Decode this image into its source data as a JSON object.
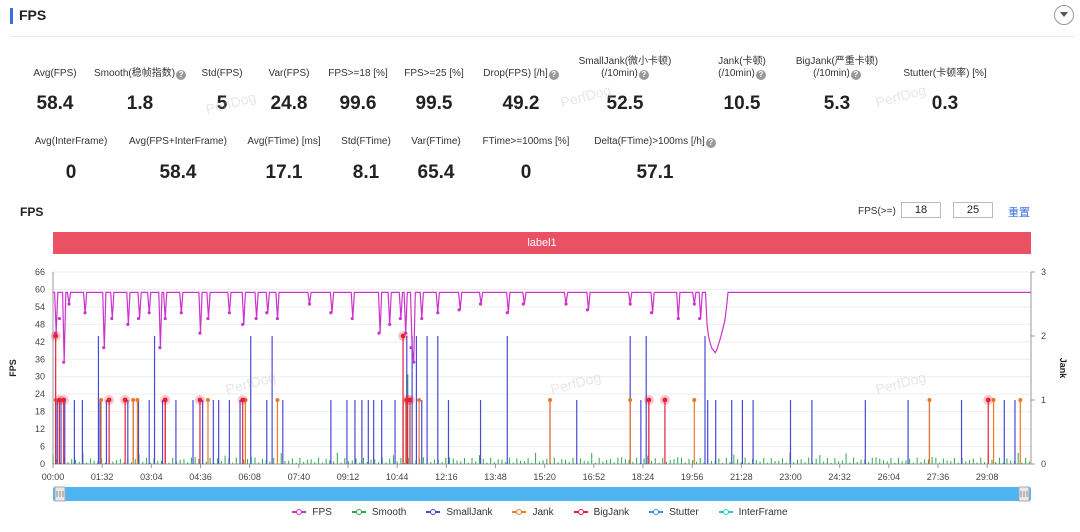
{
  "header": {
    "title": "FPS"
  },
  "metrics_row1": [
    {
      "label": "Avg(FPS)",
      "value": "58.4",
      "help": false
    },
    {
      "label": "Smooth(稳帧指数)",
      "value": "1.8",
      "help": true
    },
    {
      "label": "Std(FPS)",
      "value": "5",
      "help": false
    },
    {
      "label": "Var(FPS)",
      "value": "24.8",
      "help": false
    },
    {
      "label": "FPS>=18 [%]",
      "value": "99.6",
      "help": false
    },
    {
      "label": "FPS>=25 [%]",
      "value": "99.5",
      "help": false
    },
    {
      "label": "Drop(FPS) [/h]",
      "value": "49.2",
      "help": true
    },
    {
      "label": "SmallJank(微小卡顿)",
      "label2": "(/10min)",
      "value": "52.5",
      "help": true
    },
    {
      "label": "Jank(卡顿)",
      "label2": "(/10min)",
      "value": "10.5",
      "help": true
    },
    {
      "label": "BigJank(严重卡顿)",
      "label2": "(/10min)",
      "value": "5.3",
      "help": true
    },
    {
      "label": "Stutter(卡顿率) [%]",
      "value": "0.3",
      "help": false
    }
  ],
  "metrics_row2": [
    {
      "label": "Avg(InterFrame)",
      "value": "0",
      "help": false
    },
    {
      "label": "Avg(FPS+InterFrame)",
      "value": "58.4",
      "help": false
    },
    {
      "label": "Avg(FTime) [ms]",
      "value": "17.1",
      "help": false
    },
    {
      "label": "Std(FTime)",
      "value": "8.1",
      "help": false
    },
    {
      "label": "Var(FTime)",
      "value": "65.4",
      "help": false
    },
    {
      "label": "FTime>=100ms [%]",
      "value": "0",
      "help": false
    },
    {
      "label": "Delta(FTime)>100ms [/h]",
      "value": "57.1",
      "help": true
    }
  ],
  "watermark": "PerfDog",
  "chart_section": {
    "title": "FPS",
    "threshold_label": "FPS(>=)",
    "threshold1": "18",
    "threshold2": "25",
    "reset_label": "重置",
    "banner_label": "label1"
  },
  "chart_data": {
    "type": "line",
    "ylabel": "FPS",
    "y2label": "Jank",
    "ylim": [
      0,
      66
    ],
    "y2lim": [
      0,
      3
    ],
    "yticks": [
      "0",
      "6",
      "12",
      "18",
      "24",
      "30",
      "36",
      "42",
      "48",
      "54",
      "60",
      "66"
    ],
    "y2ticks": [
      "0",
      "1",
      "2",
      "3"
    ],
    "xticks": [
      "00:00",
      "01:32",
      "03:04",
      "04:36",
      "06:08",
      "07:40",
      "09:12",
      "10:44",
      "12:16",
      "13:48",
      "15:20",
      "16:52",
      "18:24",
      "19:56",
      "21:28",
      "23:00",
      "24:32",
      "26:04",
      "27:36",
      "29:08"
    ],
    "duration_s": 1830,
    "series": [
      {
        "name": "FPS",
        "color": "#cc33cc",
        "axis": "left",
        "baseline": 59,
        "segments": [
          [
            0,
            59
          ],
          [
            1220,
            59
          ],
          [
            1225,
            45
          ],
          [
            1232,
            40
          ],
          [
            1240,
            38
          ],
          [
            1250,
            44
          ],
          [
            1258,
            50
          ],
          [
            1263,
            59
          ],
          [
            1830,
            59
          ]
        ],
        "dips": [
          [
            5,
            45
          ],
          [
            12,
            50
          ],
          [
            20,
            35
          ],
          [
            30,
            55
          ],
          [
            60,
            52
          ],
          [
            95,
            40
          ],
          [
            110,
            50
          ],
          [
            140,
            48
          ],
          [
            160,
            50
          ],
          [
            180,
            52
          ],
          [
            200,
            40
          ],
          [
            210,
            50
          ],
          [
            240,
            52
          ],
          [
            275,
            45
          ],
          [
            290,
            50
          ],
          [
            330,
            52
          ],
          [
            355,
            48
          ],
          [
            380,
            50
          ],
          [
            400,
            52
          ],
          [
            420,
            50
          ],
          [
            480,
            55
          ],
          [
            520,
            52
          ],
          [
            560,
            50
          ],
          [
            610,
            45
          ],
          [
            630,
            48
          ],
          [
            650,
            50
          ],
          [
            660,
            45
          ],
          [
            670,
            40
          ],
          [
            675,
            35
          ],
          [
            690,
            50
          ],
          [
            720,
            52
          ],
          [
            760,
            53
          ],
          [
            800,
            55
          ],
          [
            850,
            52
          ],
          [
            880,
            55
          ],
          [
            960,
            55
          ],
          [
            1000,
            53
          ],
          [
            1080,
            55
          ],
          [
            1120,
            52
          ],
          [
            1170,
            50
          ],
          [
            1200,
            55
          ],
          [
            1210,
            50
          ]
        ]
      },
      {
        "name": "Smooth",
        "color": "#2ea84e",
        "axis": "right"
      },
      {
        "name": "SmallJank",
        "color": "#4a4ad6",
        "axis": "right",
        "events": [
          [
            8,
            1
          ],
          [
            15,
            1
          ],
          [
            22,
            1
          ],
          [
            40,
            1
          ],
          [
            55,
            1
          ],
          [
            85,
            2
          ],
          [
            88,
            1
          ],
          [
            100,
            1
          ],
          [
            140,
            1
          ],
          [
            150,
            1
          ],
          [
            160,
            1
          ],
          [
            180,
            1
          ],
          [
            190,
            2
          ],
          [
            205,
            1
          ],
          [
            230,
            1
          ],
          [
            262,
            1
          ],
          [
            280,
            1
          ],
          [
            300,
            1
          ],
          [
            310,
            1
          ],
          [
            330,
            1
          ],
          [
            350,
            1
          ],
          [
            370,
            2
          ],
          [
            400,
            1
          ],
          [
            410,
            2
          ],
          [
            430,
            1
          ],
          [
            520,
            1
          ],
          [
            550,
            1
          ],
          [
            565,
            1
          ],
          [
            578,
            1
          ],
          [
            590,
            1
          ],
          [
            600,
            1
          ],
          [
            615,
            1
          ],
          [
            640,
            1
          ],
          [
            655,
            1
          ],
          [
            662,
            2
          ],
          [
            672,
            2
          ],
          [
            680,
            2
          ],
          [
            690,
            1
          ],
          [
            700,
            2
          ],
          [
            720,
            2
          ],
          [
            740,
            1
          ],
          [
            800,
            1
          ],
          [
            850,
            2
          ],
          [
            930,
            1
          ],
          [
            980,
            1
          ],
          [
            1080,
            2
          ],
          [
            1100,
            1
          ],
          [
            1110,
            2
          ],
          [
            1220,
            2
          ],
          [
            1225,
            1
          ],
          [
            1240,
            1
          ],
          [
            1270,
            1
          ],
          [
            1290,
            1
          ],
          [
            1310,
            1
          ],
          [
            1380,
            1
          ],
          [
            1420,
            1
          ],
          [
            1520,
            1
          ],
          [
            1600,
            1
          ],
          [
            1640,
            1
          ],
          [
            1700,
            1
          ],
          [
            1780,
            1
          ],
          [
            1800,
            1
          ]
        ]
      },
      {
        "name": "Jank",
        "color": "#f07820",
        "axis": "right",
        "events": [
          [
            5,
            1
          ],
          [
            12,
            1
          ],
          [
            90,
            1
          ],
          [
            150,
            1
          ],
          [
            158,
            1
          ],
          [
            210,
            1
          ],
          [
            290,
            1
          ],
          [
            360,
            1
          ],
          [
            420,
            1
          ],
          [
            660,
            1
          ],
          [
            685,
            1
          ],
          [
            930,
            1
          ],
          [
            1080,
            1
          ],
          [
            1115,
            1
          ],
          [
            1200,
            1
          ],
          [
            1640,
            1
          ],
          [
            1760,
            1
          ],
          [
            1810,
            1
          ]
        ]
      },
      {
        "name": "BigJank",
        "color": "#e8203c",
        "axis": "right",
        "events": [
          [
            5,
            2
          ],
          [
            12,
            1
          ],
          [
            20,
            1
          ],
          [
            105,
            1
          ],
          [
            135,
            1
          ],
          [
            210,
            1
          ],
          [
            275,
            1
          ],
          [
            355,
            1
          ],
          [
            655,
            2
          ],
          [
            663,
            1
          ],
          [
            668,
            1
          ],
          [
            1115,
            1
          ],
          [
            1145,
            1
          ],
          [
            1750,
            1
          ]
        ]
      },
      {
        "name": "Stutter",
        "color": "#3a8ee6",
        "axis": "right"
      },
      {
        "name": "InterFrame",
        "color": "#2ec7c9",
        "axis": "right"
      }
    ]
  }
}
